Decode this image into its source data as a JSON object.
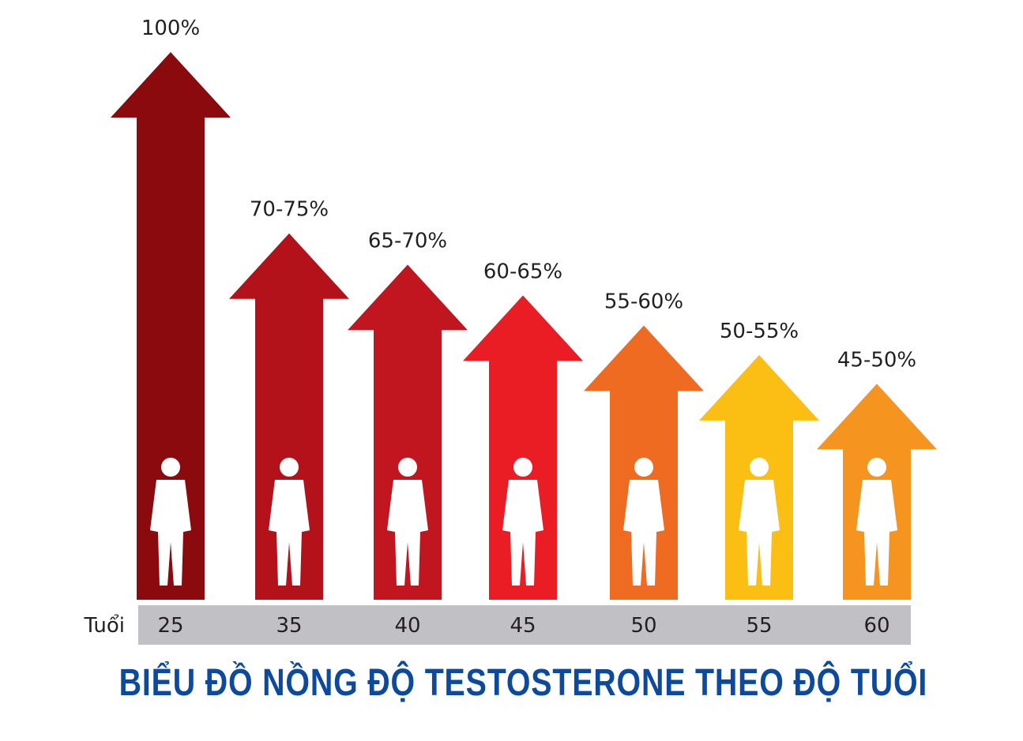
{
  "chart_data": {
    "type": "bar",
    "title": "BIỂU ĐỒ NỒNG ĐỘ TESTOSTERONE THEO ĐỘ TUỔI",
    "xlabel": "Tuổi",
    "ylabel": "",
    "categories": [
      "25",
      "35",
      "40",
      "45",
      "50",
      "55",
      "60"
    ],
    "value_labels": [
      "100%",
      "70-75%",
      "65-70%",
      "60-65%",
      "55-60%",
      "50-55%",
      "45-50%"
    ],
    "values": [
      [
        100,
        100
      ],
      [
        70,
        75
      ],
      [
        65,
        70
      ],
      [
        60,
        65
      ],
      [
        55,
        60
      ],
      [
        50,
        55
      ],
      [
        45,
        50
      ]
    ],
    "unit": "%",
    "ylim": [
      0,
      100
    ],
    "grid": false,
    "mark_style": "upward arrows with white human silhouettes",
    "colors": [
      "#8a0a0d",
      "#b3121b",
      "#c1161f",
      "#ea1d25",
      "#ef6b22",
      "#fbbf14",
      "#f5941e"
    ],
    "axis_bar_color": "#c1c0c5",
    "title_color": "#0d4a9c"
  }
}
